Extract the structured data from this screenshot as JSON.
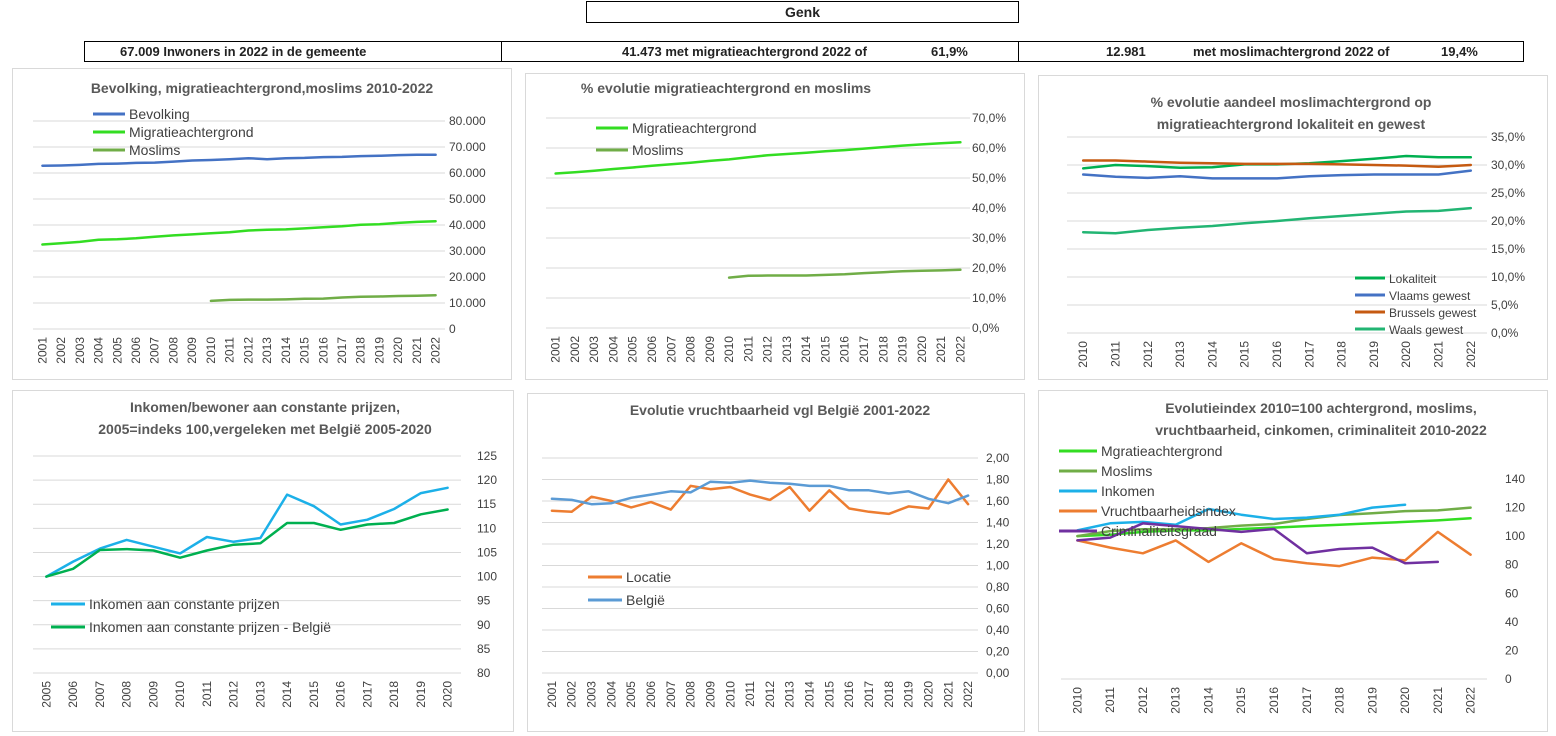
{
  "header": {
    "title": "Genk",
    "cell1": "67.009 Inwoners in 2022 in de gemeente",
    "cell2a": "41.473 met migratieachtergrond 2022 of",
    "cell2b": "61,9%",
    "cell3a": "12.981",
    "cell3b": "met moslimachtergrond 2022 of",
    "cell3c": "19,4%"
  },
  "colors": {
    "blue": "#4472c4",
    "bright_green": "#33dd22",
    "olive_green": "#70ad47",
    "orange": "#ed7d31",
    "light_blue": "#5b9bd5",
    "cyan": "#1cb0e8",
    "dark_green": "#00b050",
    "purple": "#7030a0",
    "brown": "#c55a11",
    "teal": "#22b573"
  },
  "chart_data": [
    {
      "type": "line",
      "title": [
        "Bevolking, migratieachtergrond,moslims 2010-2022"
      ],
      "x": [
        "2001",
        "2002",
        "2003",
        "2004",
        "2005",
        "2006",
        "2007",
        "2008",
        "2009",
        "2010",
        "2011",
        "2012",
        "2013",
        "2014",
        "2015",
        "2016",
        "2017",
        "2018",
        "2019",
        "2020",
        "2021",
        "2022"
      ],
      "ylim": [
        0,
        80000
      ],
      "yticks": [
        "0",
        "10.000",
        "20.000",
        "30.000",
        "40.000",
        "50.000",
        "60.000",
        "70.000",
        "80.000"
      ],
      "grid": true,
      "legend": "top-left",
      "series": [
        {
          "name": "Bevolking",
          "color": "#4472c4",
          "values": [
            62800,
            62900,
            63100,
            63500,
            63600,
            63900,
            64000,
            64400,
            64800,
            65000,
            65300,
            65700,
            65300,
            65700,
            65800,
            66100,
            66200,
            66500,
            66600,
            66900,
            67000,
            67009
          ]
        },
        {
          "name": "Migratieachtergrond",
          "color": "#33dd22",
          "values": [
            32500,
            33000,
            33500,
            34300,
            34500,
            34900,
            35500,
            36000,
            36400,
            36800,
            37200,
            37900,
            38200,
            38300,
            38700,
            39100,
            39500,
            40100,
            40300,
            40800,
            41200,
            41473
          ]
        },
        {
          "name": "Moslims",
          "color": "#70ad47",
          "values": [
            null,
            null,
            null,
            null,
            null,
            null,
            null,
            null,
            null,
            10800,
            11200,
            11300,
            11300,
            11400,
            11600,
            11700,
            12100,
            12400,
            12500,
            12700,
            12800,
            12981
          ]
        }
      ]
    },
    {
      "type": "line",
      "title": [
        "% evolutie migratieachtergrond en moslims"
      ],
      "x": [
        "2001",
        "2002",
        "2003",
        "2004",
        "2005",
        "2006",
        "2007",
        "2008",
        "2009",
        "2010",
        "2011",
        "2012",
        "2013",
        "2014",
        "2015",
        "2016",
        "2017",
        "2018",
        "2019",
        "2020",
        "2021",
        "2022"
      ],
      "ylim": [
        0,
        70
      ],
      "yticks": [
        "0,0%",
        "10,0%",
        "20,0%",
        "30,0%",
        "40,0%",
        "50,0%",
        "60,0%",
        "70,0%"
      ],
      "grid": true,
      "legend": "top-left",
      "series": [
        {
          "name": "Migratieachtergrond",
          "color": "#33dd22",
          "values": [
            51.5,
            51.9,
            52.4,
            53.0,
            53.5,
            54.1,
            54.6,
            55.1,
            55.7,
            56.2,
            56.9,
            57.6,
            58.0,
            58.4,
            58.9,
            59.3,
            59.8,
            60.3,
            60.8,
            61.2,
            61.6,
            61.9
          ]
        },
        {
          "name": "Moslims",
          "color": "#70ad47",
          "values": [
            null,
            null,
            null,
            null,
            null,
            null,
            null,
            null,
            null,
            16.8,
            17.4,
            17.5,
            17.5,
            17.5,
            17.7,
            17.9,
            18.3,
            18.6,
            18.9,
            19.1,
            19.2,
            19.4
          ]
        }
      ]
    },
    {
      "type": "line",
      "title": [
        "% evolutie aandeel moslimachtergrond op",
        "migratieachtergrond lokaliteit en gewest"
      ],
      "x": [
        "2010",
        "2011",
        "2012",
        "2013",
        "2014",
        "2015",
        "2016",
        "2017",
        "2018",
        "2019",
        "2020",
        "2021",
        "2022"
      ],
      "ylim": [
        0,
        35
      ],
      "yticks": [
        "0,0%",
        "5,0%",
        "10,0%",
        "15,0%",
        "20,0%",
        "25,0%",
        "30,0%",
        "35,0%"
      ],
      "grid": true,
      "legend": "bottom-right",
      "series": [
        {
          "name": "Lokaliteit",
          "color": "#00b050",
          "width": 2.5,
          "values": [
            29.4,
            30.0,
            29.8,
            29.5,
            29.6,
            30.1,
            30.1,
            30.3,
            30.7,
            31.1,
            31.6,
            31.4,
            31.4
          ]
        },
        {
          "name": "Vlaams gewest",
          "color": "#4472c4",
          "values": [
            28.3,
            27.9,
            27.7,
            28.0,
            27.6,
            27.6,
            27.6,
            28.0,
            28.2,
            28.3,
            28.3,
            28.3,
            29.0
          ]
        },
        {
          "name": "Brussels gewest",
          "color": "#c55a11",
          "values": [
            30.8,
            30.8,
            30.6,
            30.4,
            30.3,
            30.2,
            30.2,
            30.2,
            30.1,
            30.0,
            29.9,
            29.7,
            30.0
          ]
        },
        {
          "name": "Waals gewest",
          "color": "#22b573",
          "values": [
            18.0,
            17.8,
            18.4,
            18.8,
            19.1,
            19.6,
            20.0,
            20.5,
            20.9,
            21.3,
            21.7,
            21.8,
            22.3
          ]
        }
      ]
    },
    {
      "type": "line",
      "title": [
        "Inkomen/bewoner aan constante prijzen,",
        "2005=indeks 100,vergeleken met België 2005-2020"
      ],
      "x": [
        "2005",
        "2006",
        "2007",
        "2008",
        "2009",
        "2010",
        "2011",
        "2012",
        "2013",
        "2014",
        "2015",
        "2016",
        "2017",
        "2018",
        "2019",
        "2020"
      ],
      "ylim": [
        80,
        125
      ],
      "yticks": [
        "80",
        "85",
        "90",
        "95",
        "100",
        "105",
        "110",
        "115",
        "120",
        "125"
      ],
      "grid": true,
      "legend": "bottom-left",
      "series": [
        {
          "name": "Inkomen aan constante prijzen",
          "color": "#1cb0e8",
          "values": [
            100,
            103.1,
            105.8,
            107.6,
            106.2,
            104.8,
            108.2,
            107.2,
            108.0,
            117.0,
            114.6,
            110.8,
            111.8,
            114.0,
            117.3,
            118.4
          ]
        },
        {
          "name": "Inkomen aan constante prijzen - België",
          "color": "#00b050",
          "values": [
            100,
            101.6,
            105.5,
            105.7,
            105.4,
            103.9,
            105.4,
            106.6,
            106.9,
            111.1,
            111.1,
            109.7,
            110.8,
            111.1,
            112.9,
            113.9
          ]
        }
      ]
    },
    {
      "type": "line",
      "title": [
        "Evolutie vruchtbaarheid vgl België 2001-2022"
      ],
      "x": [
        "2001",
        "2002",
        "2003",
        "2004",
        "2005",
        "2006",
        "2007",
        "2008",
        "2009",
        "2010",
        "2011",
        "2012",
        "2013",
        "2014",
        "2015",
        "2016",
        "2017",
        "2018",
        "2019",
        "2020",
        "2021",
        "2022"
      ],
      "ylim": [
        0,
        2
      ],
      "yticks": [
        "0,00",
        "0,20",
        "0,40",
        "0,60",
        "0,80",
        "1,00",
        "1,20",
        "1,40",
        "1,60",
        "1,80",
        "2,00"
      ],
      "grid": true,
      "legend": "center-left",
      "series": [
        {
          "name": "Locatie",
          "color": "#ed7d31",
          "values": [
            1.51,
            1.5,
            1.64,
            1.6,
            1.54,
            1.59,
            1.52,
            1.74,
            1.71,
            1.73,
            1.66,
            1.61,
            1.73,
            1.51,
            1.7,
            1.53,
            1.5,
            1.48,
            1.55,
            1.53,
            1.8,
            1.57
          ]
        },
        {
          "name": "België",
          "color": "#5b9bd5",
          "values": [
            1.62,
            1.61,
            1.57,
            1.58,
            1.63,
            1.66,
            1.69,
            1.68,
            1.78,
            1.77,
            1.79,
            1.77,
            1.76,
            1.74,
            1.74,
            1.7,
            1.7,
            1.67,
            1.69,
            1.62,
            1.58,
            1.65
          ]
        }
      ]
    },
    {
      "type": "line",
      "title": [
        "Evolutieindex 2010=100 achtergrond, moslims,",
        "vruchtbaarheid, cinkomen, criminaliteit 2010-2022"
      ],
      "x": [
        "2010",
        "2011",
        "2012",
        "2013",
        "2014",
        "2015",
        "2016",
        "2017",
        "2018",
        "2019",
        "2020",
        "2021",
        "2022"
      ],
      "ylim": [
        0,
        140
      ],
      "yticks": [
        "0",
        "20",
        "40",
        "60",
        "80",
        "100",
        "120",
        "140"
      ],
      "grid": false,
      "legend": "top-left",
      "series": [
        {
          "name": "Mgratieachtergrond",
          "color": "#33dd22",
          "values": [
            100,
            101,
            103,
            104,
            104,
            105,
            106,
            107,
            108,
            109,
            110,
            111,
            112.5
          ]
        },
        {
          "name": "Moslims",
          "color": "#70ad47",
          "values": [
            100,
            103.5,
            104.8,
            104.7,
            105.6,
            107.4,
            108.5,
            112,
            114.8,
            116,
            117.5,
            118,
            120
          ]
        },
        {
          "name": "Inkomen",
          "color": "#1cb0e8",
          "values": [
            104,
            109,
            110,
            108,
            119,
            115,
            112,
            113,
            115,
            120,
            122,
            null,
            null
          ]
        },
        {
          "name": "Vruchtbaarheidsindex",
          "color": "#ed7d31",
          "values": [
            97,
            92,
            88,
            97,
            82,
            95,
            84,
            81,
            79,
            85,
            83,
            103,
            87
          ]
        },
        {
          "name": "Criminaliteitsgraad",
          "color": "#7030a0",
          "values": [
            97,
            99,
            109,
            107,
            105,
            103,
            105,
            88,
            91,
            92,
            81,
            82,
            null
          ]
        }
      ]
    }
  ]
}
